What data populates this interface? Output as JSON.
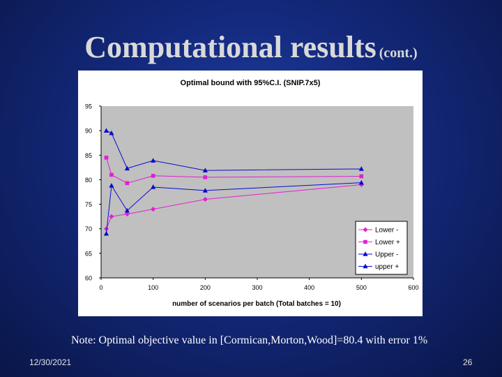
{
  "slide": {
    "title_main": "Computational results",
    "title_sub": "(cont.)",
    "note": "Note: Optimal objective value in [Cormican,Morton,Wood]=80.4 with error 1%",
    "date": "12/30/2021",
    "page_number": "26"
  },
  "colors": {
    "pink": "#e020d0",
    "blue": "#0a0ad0",
    "plot_bg": "#c0c0c0"
  },
  "chart_data": {
    "type": "line",
    "title": "Optimal bound with 95%C.I. (SNIP.7x5)",
    "xlabel": "number of scenarios per batch (Total batches = 10)",
    "ylabel": "",
    "xlim": [
      0,
      600
    ],
    "ylim": [
      60,
      95
    ],
    "xticks": [
      "0",
      "100",
      "200",
      "300",
      "400",
      "500",
      "600"
    ],
    "yticks": [
      "60",
      "65",
      "70",
      "75",
      "80",
      "85",
      "90",
      "95"
    ],
    "grid": false,
    "legend_position": "bottom-right",
    "series": [
      {
        "name": "Lower -",
        "color": "#e020d0",
        "marker": "diamond",
        "x": [
          10,
          20,
          50,
          100,
          200,
          500
        ],
        "y": [
          70.0,
          72.5,
          73.0,
          74.0,
          76.0,
          79.0
        ]
      },
      {
        "name": "Lower +",
        "color": "#e020d0",
        "marker": "square",
        "x": [
          10,
          20,
          50,
          100,
          200,
          500
        ],
        "y": [
          84.5,
          81.0,
          79.3,
          80.8,
          80.5,
          80.7
        ]
      },
      {
        "name": "Upper -",
        "color": "#0a0ad0",
        "marker": "triangle",
        "x": [
          10,
          20,
          50,
          100,
          200,
          500
        ],
        "y": [
          69.0,
          78.8,
          73.7,
          78.5,
          77.8,
          79.4
        ]
      },
      {
        "name": "upper +",
        "color": "#0a0ad0",
        "marker": "triangle",
        "x": [
          10,
          20,
          50,
          100,
          200,
          500
        ],
        "y": [
          90.0,
          89.5,
          82.3,
          83.9,
          81.9,
          82.2
        ]
      }
    ]
  }
}
